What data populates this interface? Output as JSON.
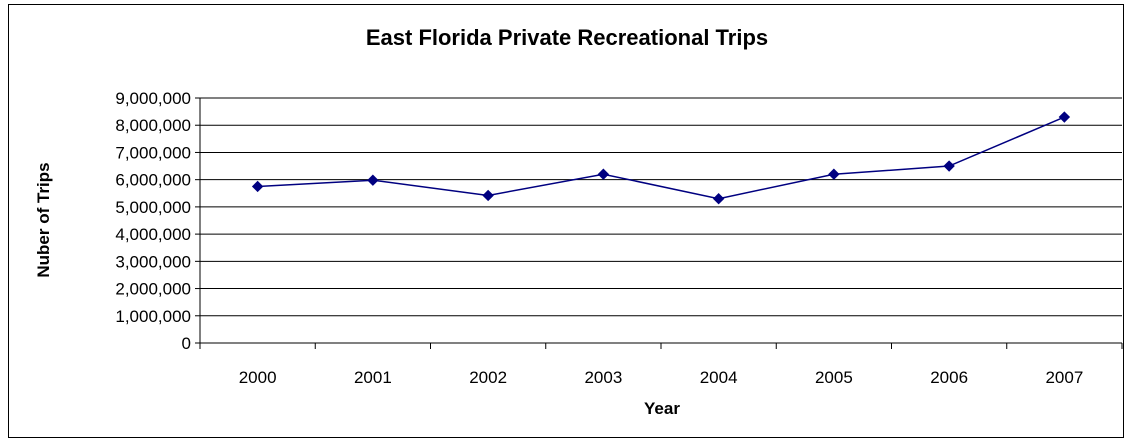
{
  "chart_data": {
    "type": "line",
    "title": "East Florida Private Recreational Trips",
    "xlabel": "Year",
    "ylabel": "Nuber of Trips",
    "categories": [
      "2000",
      "2001",
      "2002",
      "2003",
      "2004",
      "2005",
      "2006",
      "2007"
    ],
    "series": [
      {
        "values": [
          5750000,
          5980000,
          5420000,
          6200000,
          5300000,
          6200000,
          6500000,
          8300000
        ],
        "color": "#000080",
        "marker": "diamond"
      }
    ],
    "ylim": [
      0,
      9000000
    ],
    "yticks": [
      "0",
      "1,000,000",
      "2,000,000",
      "3,000,000",
      "4,000,000",
      "5,000,000",
      "6,000,000",
      "7,000,000",
      "8,000,000",
      "9,000,000"
    ],
    "grid": true,
    "legend": "none"
  }
}
